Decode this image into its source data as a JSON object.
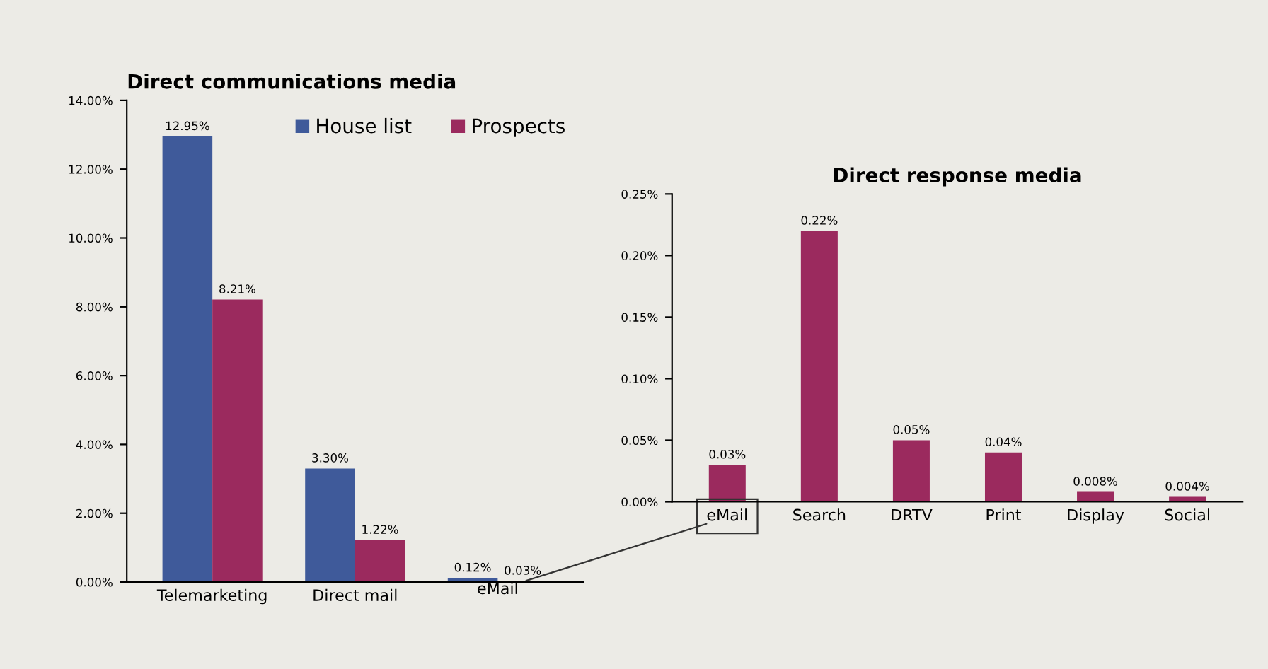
{
  "chart_data": [
    {
      "type": "bar",
      "title": "Direct communications media",
      "categories": [
        "Telemarketing",
        "Direct mail",
        "eMail"
      ],
      "series": [
        {
          "name": "House list",
          "color": "#3f5a9a",
          "values": [
            12.95,
            3.3,
            0.12
          ],
          "value_labels": [
            "12.95%",
            "3.30%",
            "0.12%"
          ]
        },
        {
          "name": "Prospects",
          "color": "#9b2a5e",
          "values": [
            8.21,
            1.22,
            0.03
          ],
          "value_labels": [
            "8.21%",
            "1.22%",
            "0.03%"
          ]
        }
      ],
      "ylim": [
        0,
        14
      ],
      "yticks": [
        {
          "value": 0,
          "label": "0.00%"
        },
        {
          "value": 2,
          "label": "2.00%"
        },
        {
          "value": 4,
          "label": "4.00%"
        },
        {
          "value": 6,
          "label": "6.00%"
        },
        {
          "value": 8,
          "label": "8.00%"
        },
        {
          "value": 10,
          "label": "10.00%"
        },
        {
          "value": 12,
          "label": "12.00%"
        },
        {
          "value": 14,
          "label": "14.00%"
        }
      ],
      "legend": "top right",
      "grid": false
    },
    {
      "type": "bar",
      "title": "Direct response media",
      "categories": [
        "eMail",
        "Search",
        "DRTV",
        "Print",
        "Display",
        "Social"
      ],
      "values": [
        0.03,
        0.22,
        0.05,
        0.04,
        0.008,
        0.004
      ],
      "color": "#9b2a5e",
      "value_labels": [
        "0.03%",
        "0.22%",
        "0.05%",
        "0.04%",
        "0.008%",
        "0.004%"
      ],
      "ylim": [
        0,
        0.25
      ],
      "yticks": [
        {
          "value": 0,
          "label": "0.00%"
        },
        {
          "value": 0.05,
          "label": "0.05%"
        },
        {
          "value": 0.1,
          "label": "0.10%"
        },
        {
          "value": 0.15,
          "label": "0.15%"
        },
        {
          "value": 0.2,
          "label": "0.20%"
        },
        {
          "value": 0.25,
          "label": "0.25%"
        }
      ],
      "grid": false
    }
  ]
}
